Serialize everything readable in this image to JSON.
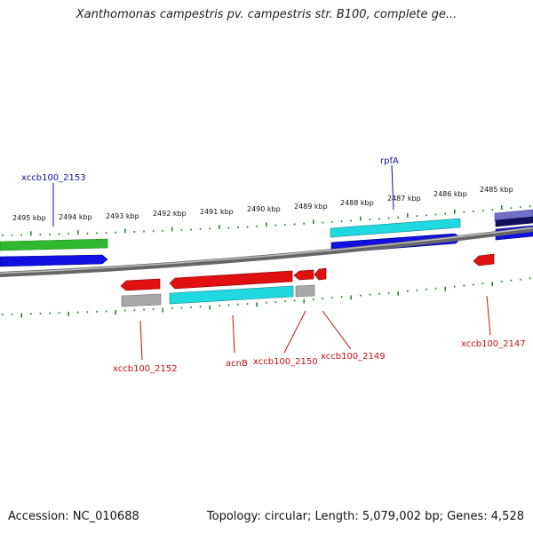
{
  "title": "Xanthomonas campestris pv. campestris str. B100, complete ge...",
  "footer": {
    "accession": "Accession: NC_010688",
    "summary": "Topology: circular; Length: 5,079,002 bp; Genes: 4,528"
  },
  "scale_labels": [
    "2495 kbp",
    "2494 kbp",
    "2493 kbp",
    "2492 kbp",
    "2491 kbp",
    "2490 kbp",
    "2489 kbp",
    "2488 kbp",
    "2487 kbp",
    "2486 kbp",
    "2485 kbp"
  ],
  "gene_labels": {
    "xccb100_2153": "xccb100_2153",
    "rpfA": "rpfA",
    "xccb100_2152": "xccb100_2152",
    "acnB": "acnB",
    "xccb100_2150": "xccb100_2150",
    "xccb100_2149": "xccb100_2149",
    "xccb100_2147": "xccb100_2147"
  },
  "colors": {
    "forward_cds": "#1010e0",
    "reverse_cds": "#e01010",
    "forward_feature": "#30b830",
    "cyan_feature": "#20d8e0",
    "gray_feature": "#a8a8a8",
    "purple_feature": "#7070c8",
    "navy_feature": "#101060",
    "backbone": "#808080",
    "tick": "#2a8a2a",
    "forward_label": "#1010a0",
    "reverse_label": "#c01010"
  }
}
